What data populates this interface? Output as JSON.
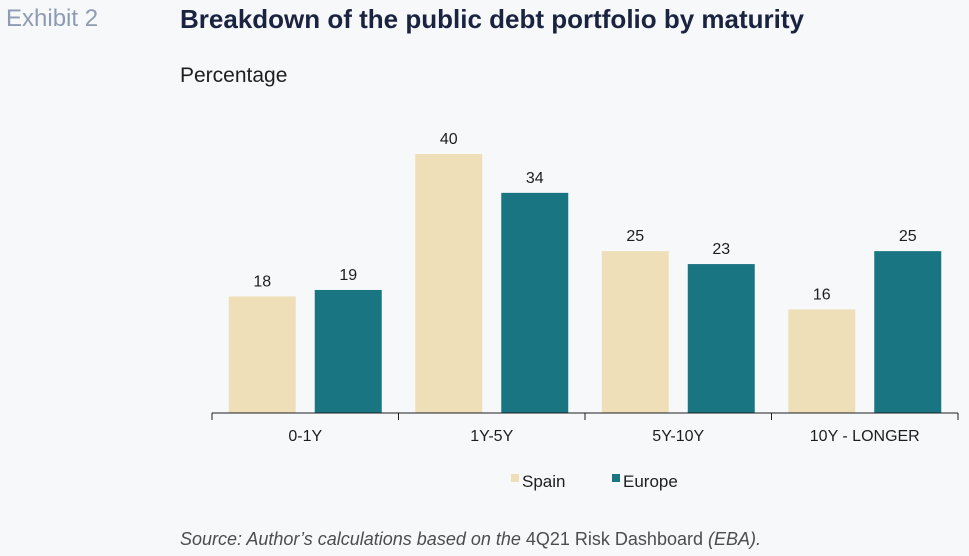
{
  "header": {
    "exhibit": "Exhibit 2",
    "title": "Breakdown of the public debt portfolio by maturity",
    "subtitle": "Percentage"
  },
  "footer": {
    "source_italic_1": "Source: Author’s calculations based on the ",
    "source_plain": "4Q21 Risk Dashboard",
    "source_italic_2": " (EBA)."
  },
  "colors": {
    "spain": "#efdfb8",
    "europe": "#1a7582",
    "axis": "#1e1e1e",
    "text": "#1e1e1e"
  },
  "chart_data": {
    "type": "bar",
    "categories": [
      "0-1Y",
      "1Y-5Y",
      "5Y-10Y",
      "10Y - LONGER"
    ],
    "series": [
      {
        "name": "Spain",
        "values": [
          18,
          40,
          25,
          16
        ]
      },
      {
        "name": "Europe",
        "values": [
          19,
          34,
          23,
          25
        ]
      }
    ],
    "title": "Breakdown of the public debt portfolio by maturity",
    "ylabel": "Percentage",
    "ylim": [
      0,
      40
    ],
    "grid": false,
    "legend": "bottom",
    "data_labels": true
  }
}
